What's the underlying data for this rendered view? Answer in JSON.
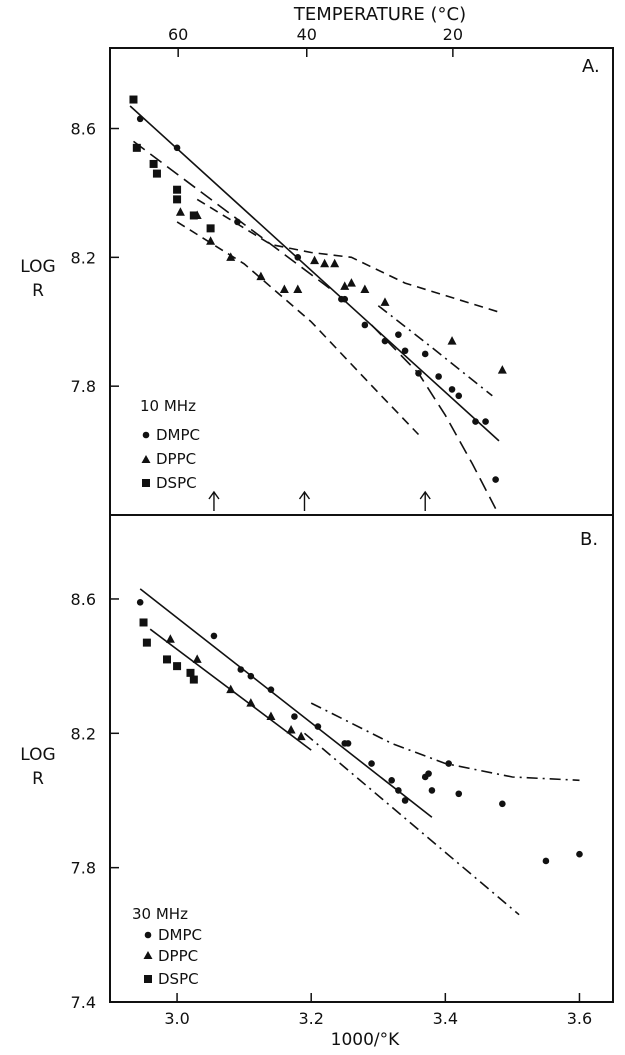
{
  "top_axis": {
    "label": "TEMPERATURE (°C)",
    "ticks": [
      {
        "celsius": 60,
        "label": "60"
      },
      {
        "celsius": 40,
        "label": "40"
      },
      {
        "celsius": 20,
        "label": "20"
      }
    ]
  },
  "chart_data": [
    {
      "panel": "A.",
      "type": "scatter",
      "ylabel": [
        "LOG",
        "R"
      ],
      "ylim": [
        7.4,
        8.85
      ],
      "xlim": [
        2.9,
        3.65
      ],
      "yticks": [
        {
          "value": 7.8,
          "label": "7.8"
        },
        {
          "value": 8.2,
          "label": "8.2"
        },
        {
          "value": 8.6,
          "label": "8.6"
        }
      ],
      "legend": {
        "title": "10 MHz",
        "position": "bottom-left"
      },
      "arrows_x": [
        3.055,
        3.19,
        3.37
      ],
      "series": [
        {
          "name": "DMPC",
          "marker": "circle",
          "points": [
            [
              2.945,
              8.63
            ],
            [
              3.0,
              8.54
            ],
            [
              3.09,
              8.31
            ],
            [
              3.18,
              8.2
            ],
            [
              3.245,
              8.07
            ],
            [
              3.25,
              8.07
            ],
            [
              3.28,
              7.99
            ],
            [
              3.31,
              7.94
            ],
            [
              3.33,
              7.96
            ],
            [
              3.34,
              7.91
            ],
            [
              3.36,
              7.84
            ],
            [
              3.37,
              7.9
            ],
            [
              3.39,
              7.83
            ],
            [
              3.41,
              7.79
            ],
            [
              3.42,
              7.77
            ],
            [
              3.445,
              7.69
            ],
            [
              3.46,
              7.69
            ],
            [
              3.475,
              7.51
            ]
          ]
        },
        {
          "name": "DPPC",
          "marker": "triangle",
          "points": [
            [
              3.005,
              8.34
            ],
            [
              3.03,
              8.33
            ],
            [
              3.05,
              8.25
            ],
            [
              3.08,
              8.2
            ],
            [
              3.125,
              8.14
            ],
            [
              3.16,
              8.1
            ],
            [
              3.18,
              8.1
            ],
            [
              3.205,
              8.19
            ],
            [
              3.22,
              8.18
            ],
            [
              3.235,
              8.18
            ],
            [
              3.25,
              8.11
            ],
            [
              3.26,
              8.12
            ],
            [
              3.28,
              8.1
            ],
            [
              3.31,
              8.06
            ],
            [
              3.41,
              7.94
            ],
            [
              3.485,
              7.85
            ]
          ]
        },
        {
          "name": "DSPC",
          "marker": "square",
          "points": [
            [
              2.935,
              8.69
            ],
            [
              2.94,
              8.54
            ],
            [
              2.965,
              8.49
            ],
            [
              2.97,
              8.46
            ],
            [
              3.0,
              8.41
            ],
            [
              3.0,
              8.38
            ],
            [
              3.025,
              8.33
            ],
            [
              3.05,
              8.29
            ]
          ]
        }
      ],
      "lines": [
        {
          "style": "solid",
          "points": [
            [
              2.93,
              8.67
            ],
            [
              3.48,
              7.63
            ]
          ]
        },
        {
          "style": "long-dash",
          "points": [
            [
              2.935,
              8.56
            ],
            [
              3.23,
              8.1
            ]
          ]
        },
        {
          "style": "dash",
          "points": [
            [
              3.03,
              8.38
            ],
            [
              3.14,
              8.24
            ],
            [
              3.2,
              8.215
            ],
            [
              3.26,
              8.2
            ],
            [
              3.34,
              8.12
            ],
            [
              3.48,
              8.03
            ]
          ]
        },
        {
          "style": "dash",
          "points": [
            [
              3.0,
              8.31
            ],
            [
              3.1,
              8.18
            ],
            [
              3.2,
              8.0
            ],
            [
              3.3,
              7.78
            ],
            [
              3.36,
              7.65
            ]
          ]
        },
        {
          "style": "dash-dot",
          "points": [
            [
              3.3,
              8.05
            ],
            [
              3.38,
              7.92
            ],
            [
              3.47,
              7.77
            ]
          ]
        },
        {
          "style": "long-dash",
          "points": [
            [
              3.29,
              7.99
            ],
            [
              3.36,
              7.84
            ],
            [
              3.4,
              7.71
            ],
            [
              3.44,
              7.56
            ],
            [
              3.475,
              7.42
            ]
          ]
        }
      ]
    },
    {
      "panel": "B.",
      "type": "scatter",
      "ylabel": [
        "LOG",
        "R"
      ],
      "xlabel": "1000/°K",
      "ylim": [
        7.4,
        8.85
      ],
      "xlim": [
        2.9,
        3.65
      ],
      "xticks": [
        {
          "value": 3.0,
          "label": "3.0"
        },
        {
          "value": 3.2,
          "label": "3.2"
        },
        {
          "value": 3.4,
          "label": "3.4"
        },
        {
          "value": 3.6,
          "label": "3.6"
        }
      ],
      "yticks": [
        {
          "value": 7.4,
          "label": "7.4"
        },
        {
          "value": 7.8,
          "label": "7.8"
        },
        {
          "value": 8.2,
          "label": "8.2"
        },
        {
          "value": 8.6,
          "label": "8.6"
        }
      ],
      "legend": {
        "title": "30 MHz",
        "position": "bottom-left"
      },
      "series": [
        {
          "name": "DMPC",
          "marker": "circle",
          "points": [
            [
              2.945,
              8.59
            ],
            [
              3.055,
              8.49
            ],
            [
              3.095,
              8.39
            ],
            [
              3.11,
              8.37
            ],
            [
              3.14,
              8.33
            ],
            [
              3.175,
              8.25
            ],
            [
              3.21,
              8.22
            ],
            [
              3.25,
              8.17
            ],
            [
              3.255,
              8.17
            ],
            [
              3.29,
              8.11
            ],
            [
              3.32,
              8.06
            ],
            [
              3.33,
              8.03
            ],
            [
              3.34,
              8.0
            ],
            [
              3.37,
              8.07
            ],
            [
              3.375,
              8.08
            ],
            [
              3.38,
              8.03
            ],
            [
              3.405,
              8.11
            ],
            [
              3.42,
              8.02
            ],
            [
              3.485,
              7.99
            ],
            [
              3.55,
              7.82
            ],
            [
              3.6,
              7.84
            ]
          ]
        },
        {
          "name": "DPPC",
          "marker": "triangle",
          "points": [
            [
              2.99,
              8.48
            ],
            [
              3.03,
              8.42
            ],
            [
              3.08,
              8.33
            ],
            [
              3.11,
              8.29
            ],
            [
              3.14,
              8.25
            ],
            [
              3.17,
              8.21
            ],
            [
              3.185,
              8.19
            ]
          ]
        },
        {
          "name": "DSPC",
          "marker": "square",
          "points": [
            [
              2.95,
              8.53
            ],
            [
              2.955,
              8.47
            ],
            [
              2.985,
              8.42
            ],
            [
              3.0,
              8.4
            ],
            [
              3.02,
              8.38
            ],
            [
              3.025,
              8.36
            ]
          ]
        }
      ],
      "lines": [
        {
          "style": "solid",
          "points": [
            [
              2.945,
              8.63
            ],
            [
              3.38,
              7.95
            ]
          ]
        },
        {
          "style": "solid",
          "points": [
            [
              2.96,
              8.51
            ],
            [
              3.2,
              8.15
            ]
          ]
        },
        {
          "style": "dash-dot",
          "points": [
            [
              3.19,
              8.2
            ],
            [
              3.51,
              7.66
            ]
          ]
        },
        {
          "style": "dash-dot",
          "points": [
            [
              3.2,
              8.29
            ],
            [
              3.32,
              8.17
            ],
            [
              3.4,
              8.11
            ],
            [
              3.5,
              8.07
            ],
            [
              3.6,
              8.06
            ]
          ]
        }
      ]
    }
  ]
}
